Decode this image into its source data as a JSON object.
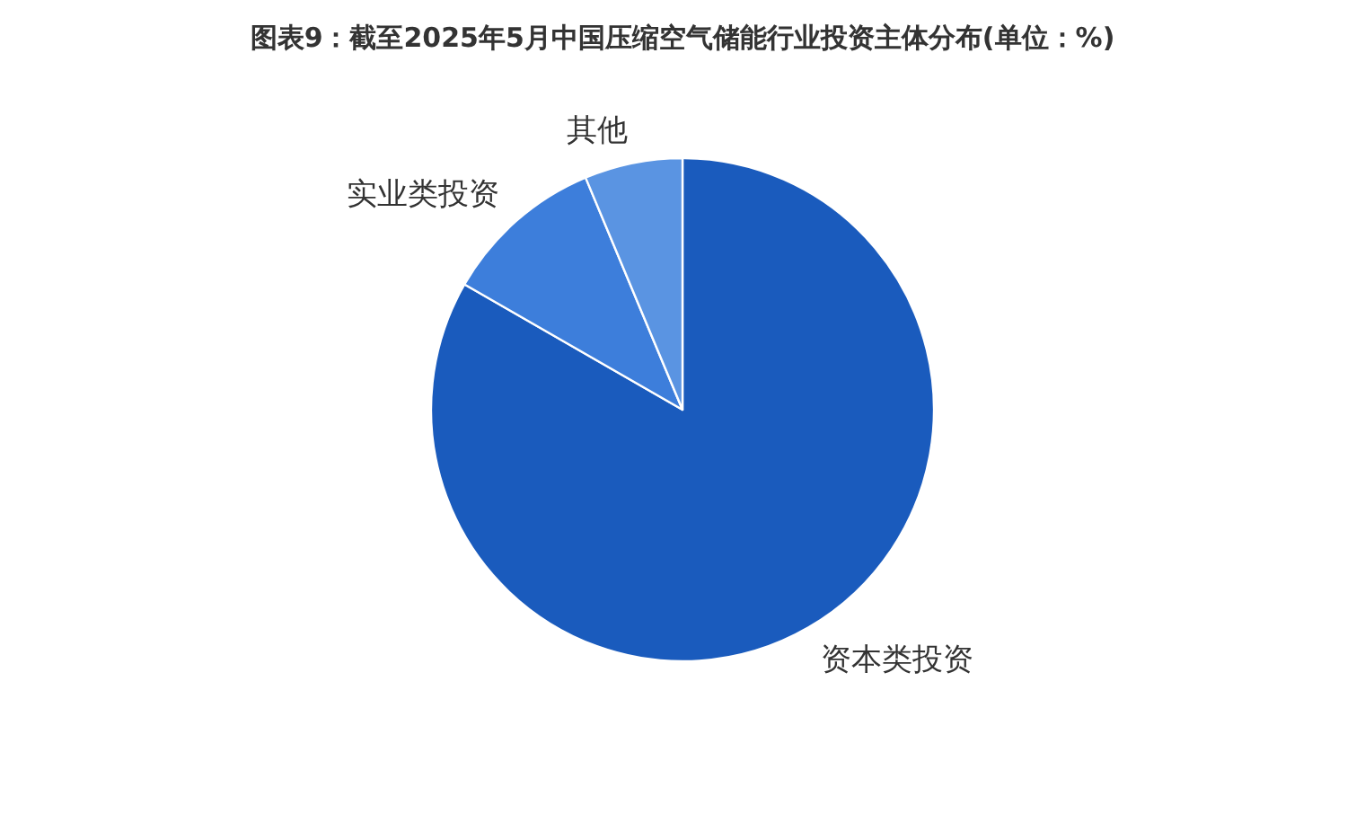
{
  "chart_data": {
    "type": "pie",
    "title": "图表9：截至2025年5月中国压缩空气储能行业投资主体分布(单位：%)",
    "categories": [
      "资本类投资",
      "实业类投资",
      "其他"
    ],
    "values": [
      83.3,
      10.4,
      6.3
    ],
    "colors": [
      "#1a5bbd",
      "#3d7edb",
      "#5a94e2"
    ]
  }
}
